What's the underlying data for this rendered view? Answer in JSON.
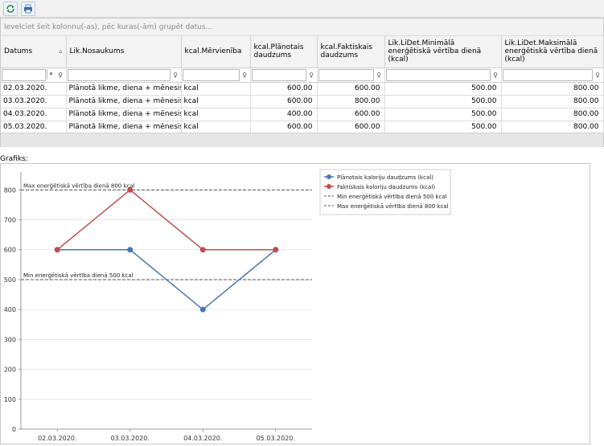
{
  "toolbar": {
    "refresh_icon": "refresh-icon",
    "print_icon": "print-icon"
  },
  "grid": {
    "group_panel_text": "Ievelciet šeit kolonnu(-as), pēc kuras(-ām) grupēt datus...",
    "columns": [
      "Datums",
      "Lik.Nosaukums",
      "kcal.Mērvienība",
      "kcal.Plānotais daudzums",
      "kcal.Faktiskais daudzums",
      "Lik.LiDet.Minimālā enerģētiskā vērtība dienā (kcal)",
      "Lik.LiDet.Maksimālā enerģētiskā vērtība dienā (kcal)"
    ],
    "sort_indicator": "▵",
    "rows": [
      [
        "02.03.2020.",
        "Plānotā likme, diena + mēnesis",
        "kcal",
        "600.00",
        "600.00",
        "500.00",
        "800.00"
      ],
      [
        "03.03.2020.",
        "Plānotā likme, diena + mēnesis",
        "kcal",
        "600.00",
        "800.00",
        "500.00",
        "800.00"
      ],
      [
        "04.03.2020.",
        "Plānotā likme, diena + mēnesis",
        "kcal",
        "400.00",
        "600.00",
        "500.00",
        "800.00"
      ],
      [
        "05.03.2020.",
        "Plānotā likme, diena + mēnesis",
        "kcal",
        "600.00",
        "600.00",
        "500.00",
        "800.00"
      ]
    ]
  },
  "chart_label": "Grafiks:",
  "chart_data": {
    "type": "line",
    "categories": [
      "02.03.2020.",
      "03.03.2020.",
      "04.03.2020.",
      "05.03.2020."
    ],
    "series": [
      {
        "name": "Plānotais kaloriju daudzums (kcal)",
        "values": [
          600,
          600,
          400,
          600
        ],
        "color": "#4a78b5"
      },
      {
        "name": "Faktiskais kaloriju daudzums (kcal)",
        "values": [
          600,
          800,
          600,
          600
        ],
        "color": "#c0504d"
      }
    ],
    "constant_lines": [
      {
        "name": "Min enerģētiskā vērtība dienā 500 kcal",
        "value": 500
      },
      {
        "name": "Max enerģētiskā vērtība dienā 800 kcal",
        "value": 800
      }
    ],
    "yticks": [
      0,
      100,
      200,
      300,
      400,
      500,
      600,
      700,
      800
    ],
    "ylim": [
      0,
      860
    ],
    "legend": "top-right",
    "grid": true
  }
}
